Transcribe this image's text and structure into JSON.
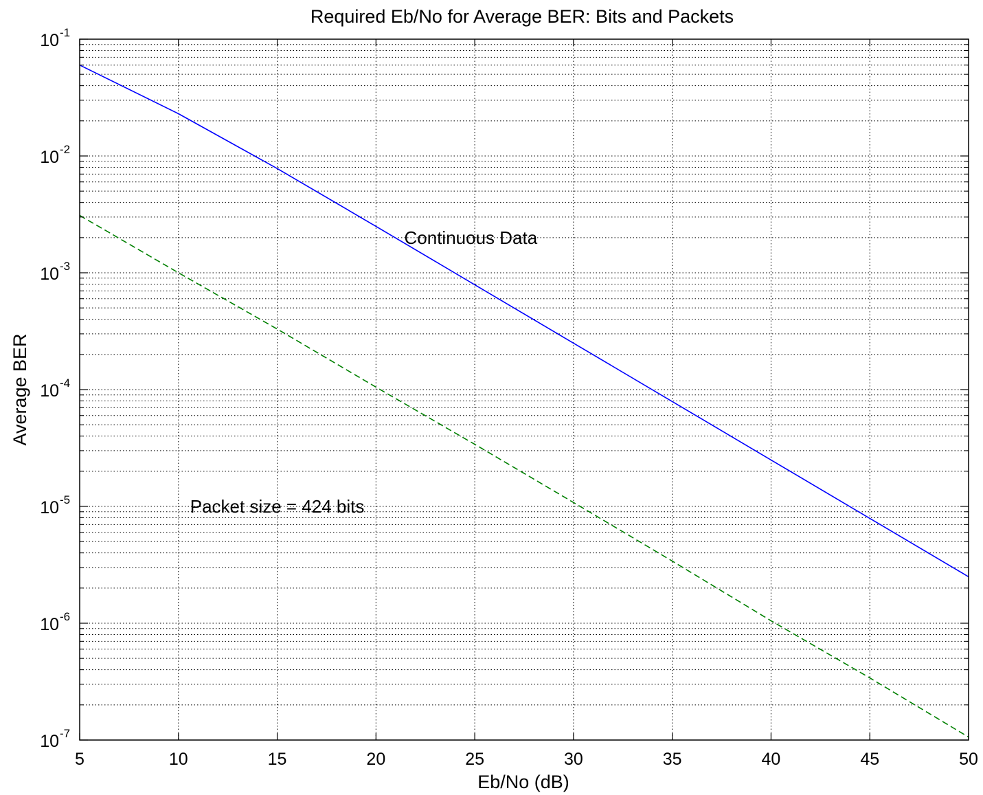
{
  "chart_data": {
    "type": "line",
    "title": "Required Eb/No for Average BER: Bits and Packets",
    "xlabel": "Eb/No (dB)",
    "ylabel": "Average BER",
    "xlim": [
      5,
      50
    ],
    "ylim": [
      1e-07,
      0.1
    ],
    "yscale": "log",
    "grid": true,
    "x_ticks": [
      "5",
      "10",
      "15",
      "20",
      "25",
      "30",
      "35",
      "40",
      "45",
      "50"
    ],
    "y_ticks": [
      {
        "base": "10",
        "exp": "-7",
        "value": 1e-07
      },
      {
        "base": "10",
        "exp": "-6",
        "value": 1e-06
      },
      {
        "base": "10",
        "exp": "-5",
        "value": 1e-05
      },
      {
        "base": "10",
        "exp": "-4",
        "value": 0.0001
      },
      {
        "base": "10",
        "exp": "-3",
        "value": 0.001
      },
      {
        "base": "10",
        "exp": "-2",
        "value": 0.01
      },
      {
        "base": "10",
        "exp": "-1",
        "value": 0.1
      }
    ],
    "series": [
      {
        "name": "",
        "color": "#0000ff",
        "dash": "solid",
        "x": [
          5,
          10,
          15,
          20,
          25,
          30,
          35,
          40,
          45,
          50
        ],
        "y": [
          0.06,
          0.023,
          0.0078,
          0.0025,
          0.00079,
          0.00025,
          7.9e-05,
          2.5e-05,
          7.9e-06,
          2.5e-06
        ]
      },
      {
        "name": "",
        "color": "#008000",
        "dash": "dashed",
        "x": [
          5,
          10,
          15,
          20,
          25,
          30,
          35,
          40,
          45,
          50
        ],
        "y": [
          0.0031,
          0.001,
          0.00033,
          0.000105,
          3.4e-05,
          1.08e-05,
          3.4e-06,
          1.05e-06,
          3.4e-07,
          1.06e-07
        ]
      }
    ],
    "annotations": [
      {
        "text": "Continuous Data",
        "x": 24.8,
        "y": 0.002
      },
      {
        "text": "Packet size = 424 bits",
        "x": 15,
        "y": 1e-05
      }
    ]
  }
}
